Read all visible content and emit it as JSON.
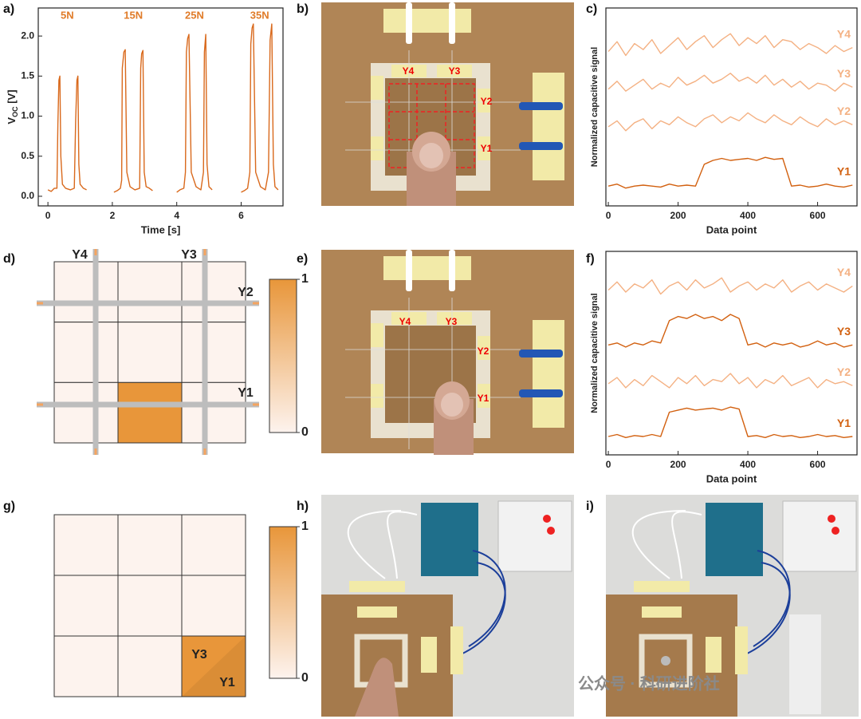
{
  "panel_labels": [
    "a)",
    "b)",
    "c)",
    "d)",
    "e)",
    "f)",
    "g)",
    "h)",
    "i)"
  ],
  "chart_data": [
    {
      "type": "line",
      "xlabel": "Time [s]",
      "ylabel": "V",
      "ylabel_sub": "OC",
      "ylabel_unit": " [V]",
      "annotations": [
        "5N",
        "15N",
        "25N",
        "35N"
      ],
      "annotation_color": "#e07b28",
      "color": "#d9691c",
      "xlim": [
        -0.3,
        7.3
      ],
      "ylim": [
        -0.12,
        2.35
      ],
      "xticks": [
        0,
        2,
        4,
        6
      ],
      "yticks": [
        {
          "value": 0,
          "label": "0.0"
        },
        {
          "value": 0.5,
          "label": "0.5"
        },
        {
          "value": 1,
          "label": "1.0"
        },
        {
          "value": 1.5,
          "label": "1.5"
        },
        {
          "value": 2,
          "label": "2.0"
        }
      ],
      "x": [
        0,
        0.1,
        0.2,
        0.28,
        0.31,
        0.34,
        0.37,
        0.4,
        0.45,
        0.55,
        0.7,
        0.82,
        0.86,
        0.9,
        0.93,
        0.96,
        1.0,
        1.1,
        1.2,
        null,
        2.05,
        2.15,
        2.25,
        2.29,
        2.31,
        2.36,
        2.4,
        2.45,
        2.55,
        2.7,
        2.85,
        2.88,
        2.91,
        2.95,
        2.99,
        3.05,
        3.15,
        3.25,
        null,
        4.0,
        4.1,
        4.22,
        4.27,
        4.3,
        4.34,
        4.38,
        4.45,
        4.6,
        4.75,
        4.83,
        4.86,
        4.9,
        4.94,
        5.0,
        5.1,
        null,
        6.0,
        6.1,
        6.2,
        6.27,
        6.3,
        6.34,
        6.38,
        6.45,
        6.6,
        6.75,
        6.85,
        6.9,
        6.95,
        7.0,
        7.05,
        7.15
      ],
      "values": [
        0.08,
        0.06,
        0.1,
        0.1,
        0.9,
        1.45,
        1.5,
        0.5,
        0.15,
        0.1,
        0.08,
        0.1,
        0.95,
        1.45,
        1.5,
        0.4,
        0.15,
        0.1,
        0.08,
        null,
        0.05,
        0.07,
        0.1,
        0.2,
        1.6,
        1.8,
        1.83,
        0.3,
        0.12,
        0.08,
        0.1,
        1.6,
        1.78,
        1.82,
        0.3,
        0.12,
        0.1,
        0.07,
        null,
        0.05,
        0.08,
        0.1,
        0.3,
        1.8,
        1.97,
        2.02,
        0.3,
        0.12,
        0.08,
        0.3,
        1.8,
        2.02,
        0.4,
        0.12,
        0.08,
        null,
        0.05,
        0.07,
        0.1,
        0.3,
        1.9,
        2.1,
        2.15,
        0.3,
        0.12,
        0.08,
        0.3,
        1.95,
        2.15,
        0.4,
        0.12,
        0.08
      ]
    },
    {
      "type": "line",
      "xlabel": "Data point",
      "ylabel": "Normalized capacitive signal",
      "xlim": [
        -7,
        713
      ],
      "ylim": [
        0,
        10
      ],
      "xticks": [
        0,
        200,
        400,
        600
      ],
      "x": [
        0,
        25,
        50,
        75,
        100,
        125,
        150,
        175,
        200,
        225,
        250,
        275,
        300,
        325,
        350,
        375,
        400,
        425,
        450,
        475,
        500,
        525,
        550,
        575,
        600,
        625,
        650,
        675,
        700
      ],
      "series": [
        {
          "name": "Y4",
          "color": "#f4b183",
          "values": [
            7.8,
            8.3,
            7.6,
            8.2,
            7.9,
            8.4,
            7.7,
            8.1,
            8.5,
            7.9,
            8.3,
            8.6,
            8.0,
            8.4,
            8.7,
            8.1,
            8.5,
            8.2,
            8.6,
            8.0,
            8.4,
            8.3,
            7.9,
            8.2,
            8.0,
            7.7,
            8.1,
            7.8,
            8.0
          ]
        },
        {
          "name": "Y3",
          "color": "#f4b183",
          "values": [
            5.9,
            6.3,
            5.8,
            6.1,
            6.4,
            5.9,
            6.2,
            6.0,
            6.5,
            6.1,
            6.3,
            6.6,
            6.2,
            6.4,
            6.7,
            6.3,
            6.5,
            6.2,
            6.6,
            6.1,
            6.4,
            6.0,
            6.3,
            5.9,
            6.2,
            6.1,
            5.8,
            6.2,
            6.0
          ]
        },
        {
          "name": "Y2",
          "color": "#f4b183",
          "values": [
            4.0,
            4.3,
            3.8,
            4.2,
            4.4,
            3.9,
            4.3,
            4.1,
            4.5,
            4.2,
            4.0,
            4.4,
            4.6,
            4.2,
            4.5,
            4.3,
            4.7,
            4.4,
            4.2,
            4.6,
            4.3,
            4.1,
            4.5,
            4.2,
            4.0,
            4.4,
            4.1,
            4.3,
            4.1
          ]
        },
        {
          "name": "Y1",
          "color": "#d2600f",
          "values": [
            1.0,
            1.1,
            0.9,
            1.0,
            1.05,
            1.0,
            0.95,
            1.1,
            1.0,
            1.05,
            1.0,
            2.1,
            2.3,
            2.4,
            2.3,
            2.35,
            2.4,
            2.3,
            2.45,
            2.35,
            2.4,
            1.0,
            1.05,
            0.95,
            1.0,
            1.1,
            1.0,
            0.95,
            1.05
          ]
        }
      ]
    },
    {
      "type": "line",
      "xlabel": "Data point",
      "ylabel": "Normalized capacitive signal",
      "xlim": [
        -7,
        713
      ],
      "ylim": [
        0,
        10
      ],
      "xticks": [
        0,
        200,
        400,
        600
      ],
      "x": [
        0,
        25,
        50,
        75,
        100,
        125,
        150,
        175,
        200,
        225,
        250,
        275,
        300,
        325,
        350,
        375,
        400,
        425,
        450,
        475,
        500,
        525,
        550,
        575,
        600,
        625,
        650,
        675,
        700
      ],
      "series": [
        {
          "name": "Y4",
          "color": "#f4b183",
          "values": [
            8.1,
            8.5,
            8.0,
            8.4,
            8.2,
            8.6,
            7.9,
            8.3,
            8.5,
            8.1,
            8.6,
            8.2,
            8.4,
            8.7,
            8.0,
            8.3,
            8.5,
            8.1,
            8.4,
            8.2,
            8.6,
            8.0,
            8.3,
            8.5,
            8.1,
            8.4,
            8.2,
            8.0,
            8.3
          ]
        },
        {
          "name": "Y3",
          "color": "#d2600f",
          "values": [
            5.4,
            5.5,
            5.3,
            5.5,
            5.4,
            5.6,
            5.5,
            6.6,
            6.8,
            6.7,
            6.9,
            6.7,
            6.8,
            6.6,
            6.9,
            6.7,
            5.4,
            5.5,
            5.3,
            5.5,
            5.4,
            5.5,
            5.3,
            5.4,
            5.6,
            5.4,
            5.5,
            5.3,
            5.4
          ]
        },
        {
          "name": "Y2",
          "color": "#f4b183",
          "values": [
            3.5,
            3.8,
            3.3,
            3.7,
            3.4,
            3.9,
            3.6,
            3.3,
            3.8,
            3.5,
            3.9,
            3.4,
            3.7,
            3.6,
            4.0,
            3.5,
            3.8,
            3.3,
            3.7,
            3.5,
            3.9,
            3.4,
            3.6,
            3.8,
            3.3,
            3.7,
            3.5,
            3.6,
            3.4
          ]
        },
        {
          "name": "Y1",
          "color": "#d2600f",
          "values": [
            0.9,
            1.0,
            0.85,
            0.95,
            0.9,
            1.0,
            0.9,
            2.1,
            2.2,
            2.3,
            2.2,
            2.25,
            2.3,
            2.2,
            2.35,
            2.25,
            0.9,
            0.95,
            0.85,
            1.0,
            0.9,
            0.95,
            0.85,
            0.9,
            1.0,
            0.9,
            0.95,
            0.85,
            0.9
          ]
        }
      ]
    },
    {
      "type": "heatmap",
      "values": [
        [
          0,
          0,
          0
        ],
        [
          0,
          0,
          0
        ],
        [
          0,
          1,
          0
        ]
      ],
      "colors": [
        "#fdf3ee",
        "#e8963a"
      ],
      "colorbar_ticks": [
        0,
        1
      ],
      "electrode_labels": [
        "Y4",
        "Y3",
        "Y2",
        "Y1"
      ]
    },
    {
      "type": "heatmap",
      "values": [
        [
          0,
          0,
          0
        ],
        [
          0,
          0,
          0
        ],
        [
          0,
          0,
          1
        ]
      ],
      "colors": [
        "#fdf3ee",
        "#e8963a"
      ],
      "colorbar_ticks": [
        0,
        1
      ],
      "cell_labels": [
        "Y3",
        "Y1"
      ]
    }
  ],
  "photos": {
    "b": [
      "Y4",
      "Y3",
      "Y2",
      "Y1"
    ],
    "e": [
      "Y4",
      "Y3",
      "Y2",
      "Y1"
    ]
  },
  "watermark": "公众号 · 科研进阶社"
}
